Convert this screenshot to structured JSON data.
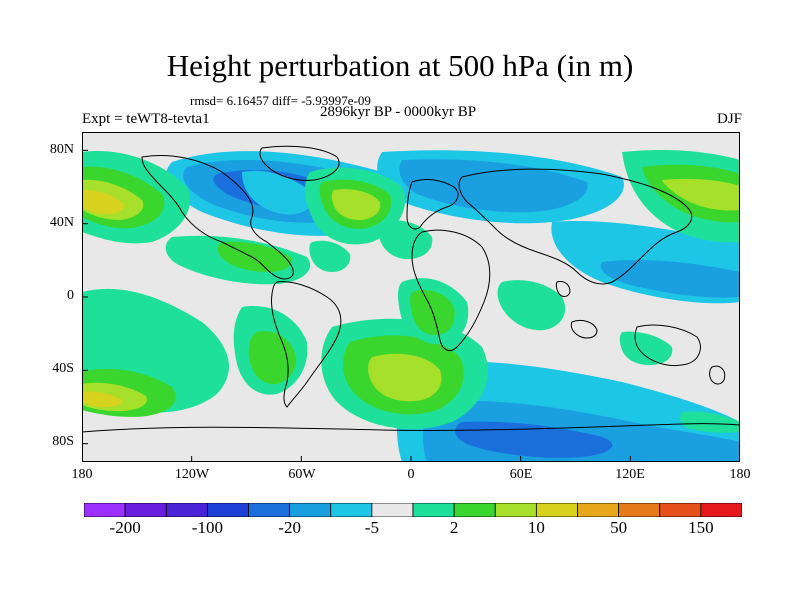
{
  "title": "Height perturbation at 500 hPa (in m)",
  "stats": "rmsd= 6.16457 diff= -5.93997e-09",
  "period": "2896kyr BP - 0000kyr BP",
  "experiment": "Expt = teWT8-tevta1",
  "season": "DJF",
  "map": {
    "projection": "cylindrical equidistant",
    "lon_range": [
      -180,
      180
    ],
    "lat_range": [
      -90,
      90
    ],
    "lat_ticks": [
      {
        "label": "80N",
        "lat": 80
      },
      {
        "label": "40N",
        "lat": 40
      },
      {
        "label": "0",
        "lat": 0
      },
      {
        "label": "40S",
        "lat": -40
      },
      {
        "label": "80S",
        "lat": -80
      }
    ],
    "lon_ticks": [
      {
        "label": "180",
        "lon": -180
      },
      {
        "label": "120W",
        "lon": -120
      },
      {
        "label": "60W",
        "lon": -60
      },
      {
        "label": "0",
        "lon": 0
      },
      {
        "label": "60E",
        "lon": 60
      },
      {
        "label": "120E",
        "lon": 120
      },
      {
        "label": "180",
        "lon": 180
      }
    ]
  },
  "colorbar": {
    "colors": [
      "#9b30ff",
      "#6a1fe0",
      "#4a24d6",
      "#1f3fd9",
      "#1a6fdd",
      "#1aa0e0",
      "#1ec6e6",
      "#e8e8e8",
      "#1ee09a",
      "#3ad62e",
      "#a6e02a",
      "#d6d21e",
      "#e6a81a",
      "#e67a1a",
      "#e6501a",
      "#e61a1a"
    ],
    "labels": [
      {
        "text": "-200",
        "after_box": 1
      },
      {
        "text": "-100",
        "after_box": 3
      },
      {
        "text": "-20",
        "after_box": 5
      },
      {
        "text": "-5",
        "after_box": 7
      },
      {
        "text": "2",
        "after_box": 9
      },
      {
        "text": "10",
        "after_box": 11
      },
      {
        "text": "50",
        "after_box": 13
      },
      {
        "text": "150",
        "after_box": 15
      }
    ]
  }
}
